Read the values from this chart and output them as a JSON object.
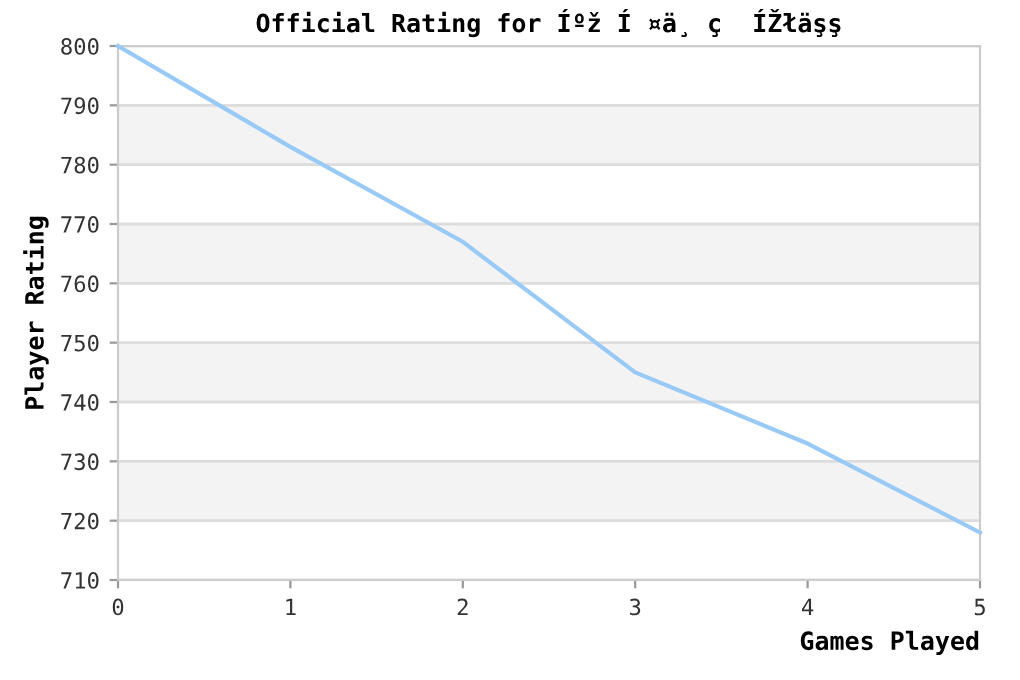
{
  "chart_data": {
    "type": "line",
    "title": "Official Rating for Íºž Í ¤ä¸ ç  ÍŽłäşş",
    "xlabel": "Games Played",
    "ylabel": "Player Rating",
    "x": [
      0,
      1,
      2,
      3,
      4,
      5
    ],
    "series": [
      {
        "color": "#99c9f5",
        "values": [
          800,
          783,
          767,
          745,
          733,
          718
        ]
      }
    ],
    "xlim": [
      0,
      5
    ],
    "xticks": [
      0,
      1,
      2,
      3,
      4,
      5
    ],
    "ylim": [
      710,
      800
    ],
    "yticks": [
      710,
      720,
      730,
      740,
      750,
      760,
      770,
      780,
      790,
      800
    ],
    "grid": "y",
    "marker": "none",
    "line_style": "solid",
    "bands": [
      {
        "axis": "y",
        "from": 780,
        "to": 790,
        "color": "#f3f3f3"
      },
      {
        "axis": "y",
        "from": 760,
        "to": 770,
        "color": "#f3f3f3"
      },
      {
        "axis": "y",
        "from": 740,
        "to": 750,
        "color": "#f3f3f3"
      },
      {
        "axis": "y",
        "from": 720,
        "to": 730,
        "color": "#f3f3f3"
      }
    ]
  }
}
